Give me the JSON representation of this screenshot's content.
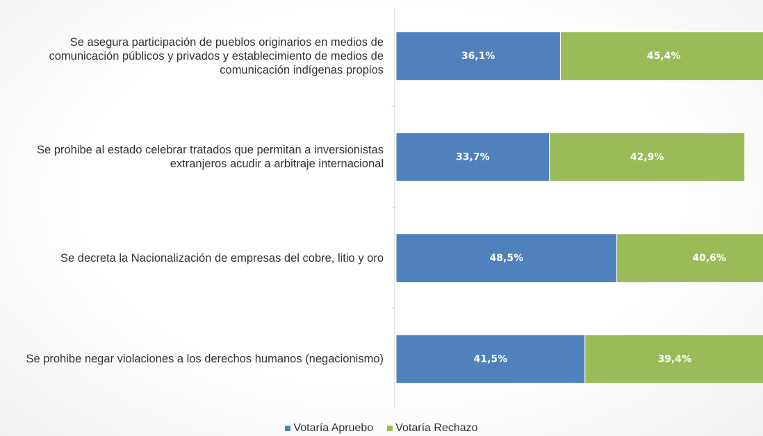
{
  "chart_data": {
    "type": "bar",
    "orientation": "horizontal",
    "stacked": true,
    "categories": [
      "Se asegura participación de pueblos originarios en medios de comunicación públicos y privados y establecimiento de medios de comunicación indígenas propios",
      "Se prohibe al estado celebrar tratados que permitan a inversionistas extranjeros acudir a arbitraje internacional",
      "Se decreta la Nacionalización de empresas del cobre, litio y oro",
      "Se prohibe negar violaciones a los derechos humanos (negacionismo)"
    ],
    "series": [
      {
        "name": "Votaría Apruebo",
        "color": "#4f81bd",
        "values": [
          36.1,
          33.7,
          48.5,
          41.5
        ],
        "value_labels": [
          "36,1%",
          "33,7%",
          "48,5%",
          "41,5%"
        ]
      },
      {
        "name": "Votaría Rechazo",
        "color": "#9bbb59",
        "values": [
          45.4,
          42.9,
          40.6,
          39.4
        ],
        "value_labels": [
          "45,4%",
          "42,9%",
          "40,6%",
          "39,4%"
        ]
      }
    ],
    "legend": "bottom"
  }
}
